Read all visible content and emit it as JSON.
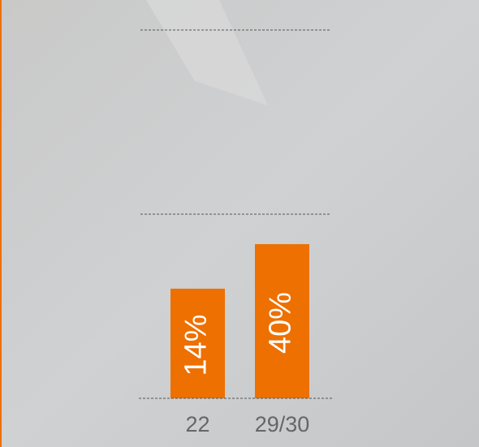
{
  "chart_data": {
    "type": "bar",
    "categories": [
      "22",
      "29/30"
    ],
    "values": [
      14,
      40
    ],
    "value_labels": [
      "14%",
      "40%"
    ],
    "color": "#ed7000",
    "ylim": [
      -50,
      165
    ]
  }
}
